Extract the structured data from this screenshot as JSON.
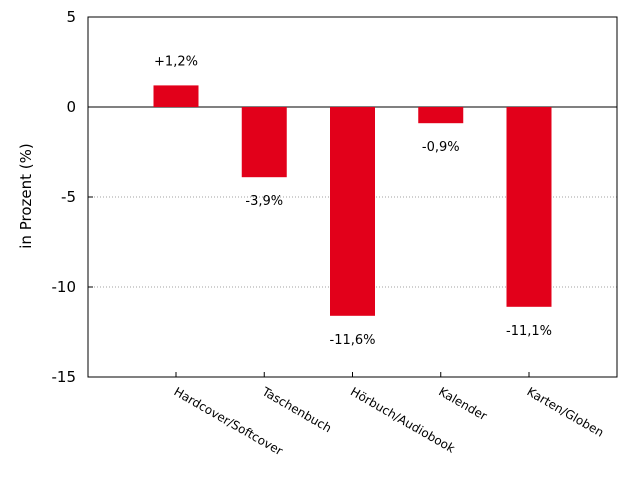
{
  "chart_data": {
    "type": "bar",
    "categories": [
      "Hardcover/Softcover",
      "Taschenbuch",
      "Hörbuch/Audiobook",
      "Kalender",
      "Karten/Globen"
    ],
    "values": [
      1.2,
      -3.9,
      -11.6,
      -0.9,
      -11.1
    ],
    "data_labels": [
      "+1,2%",
      "-3,9%",
      "-11,6%",
      "-0,9%",
      "-11,1%"
    ],
    "ylabel": "in Prozent (%)",
    "ylim": [
      -15,
      5
    ],
    "yticks": [
      5,
      0,
      -5,
      -10,
      -15
    ],
    "ytick_labels": [
      "5",
      "0",
      "-5",
      "-10",
      "-15"
    ],
    "grid": "horizontal dotted",
    "bar_color": "#e2001a"
  }
}
